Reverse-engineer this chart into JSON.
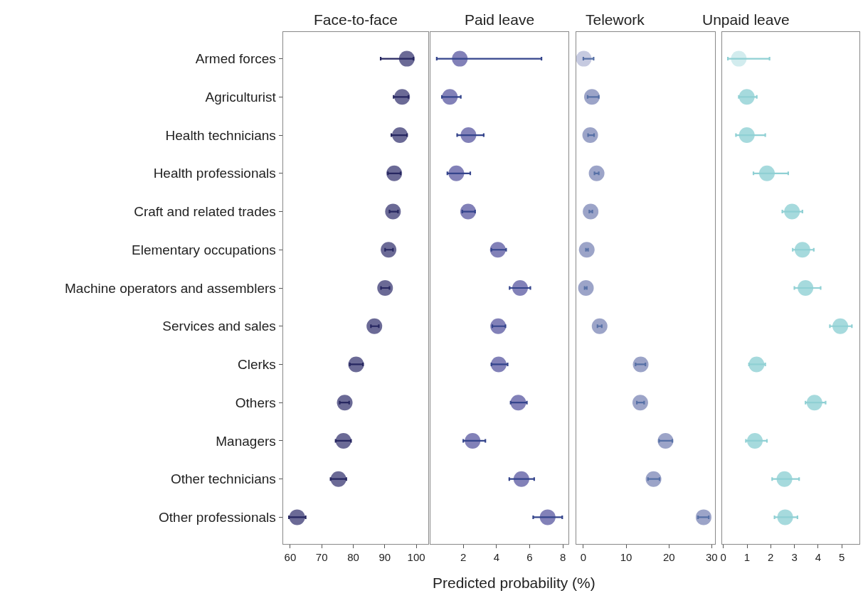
{
  "chart_data": [
    {
      "type": "scatter",
      "orientation": "horizontal",
      "title": "Face-to-face",
      "xlabel": "Predicted probability (%)",
      "marker": "circle",
      "categories": [
        "Armed forces",
        "Agriculturist",
        "Health technicians",
        "Health professionals",
        "Craft and related trades",
        "Elementary occupations",
        "Machine operators and assemblers",
        "Services and sales",
        "Clerks",
        "Others",
        "Managers",
        "Other technicians",
        "Other professionals"
      ],
      "color": "#262660",
      "colors": [
        "#6b6a96",
        "#6b6a96",
        "#6b6a96",
        "#6b6a96",
        "#6b6a96",
        "#6b6a96",
        "#6b6a96",
        "#6b6a96",
        "#6b6a96",
        "#6b6a96",
        "#6b6a96",
        "#6b6a96",
        "#6b6a96"
      ],
      "values": [
        97.0,
        95.5,
        94.8,
        93.0,
        92.6,
        91.2,
        90.1,
        86.7,
        80.9,
        77.3,
        76.9,
        75.3,
        62.2
      ],
      "errors": [
        [
          88.7,
          99.1
        ],
        [
          92.8,
          97.5
        ],
        [
          92.1,
          97.1
        ],
        [
          91.0,
          95.0
        ],
        [
          91.5,
          94.2
        ],
        [
          90.1,
          92.6
        ],
        [
          88.8,
          91.5
        ],
        [
          85.6,
          88.1
        ],
        [
          78.9,
          83.1
        ],
        [
          75.7,
          78.7
        ],
        [
          74.4,
          79.3
        ],
        [
          72.8,
          77.8
        ],
        [
          59.6,
          64.9
        ]
      ],
      "xlim": [
        57.7,
        103.7
      ],
      "xticks": [
        60,
        70,
        80,
        90,
        100
      ]
    },
    {
      "type": "scatter",
      "orientation": "horizontal",
      "title": "Paid leave",
      "marker": "circle",
      "tick_labels": "x",
      "categories": [
        "Armed forces",
        "Agriculturist",
        "Health technicians",
        "Health professionals",
        "Craft and related trades",
        "Elementary occupations",
        "Machine operators and assemblers",
        "Services and sales",
        "Clerks",
        "Others",
        "Managers",
        "Other technicians",
        "Other professionals"
      ],
      "color": "#34448c",
      "colors": [
        "#8281b8",
        "#8281b8",
        "#8281b8",
        "#8281b8",
        "#8281b8",
        "#8281b8",
        "#8281b8",
        "#8281b8",
        "#8281b8",
        "#8281b8",
        "#8281b8",
        "#8281b8",
        "#8281b8"
      ],
      "values": [
        1.79,
        1.19,
        2.31,
        1.58,
        2.29,
        4.08,
        5.42,
        4.1,
        4.13,
        5.31,
        2.56,
        5.5,
        7.08
      ],
      "errors": [
        [
          0.4,
          6.71
        ],
        [
          0.71,
          1.85
        ],
        [
          1.63,
          3.23
        ],
        [
          1.04,
          2.42
        ],
        [
          1.94,
          2.71
        ],
        [
          3.69,
          4.58
        ],
        [
          4.79,
          6.04
        ],
        [
          3.75,
          4.54
        ],
        [
          3.69,
          4.67
        ],
        [
          4.85,
          5.83
        ],
        [
          2.0,
          3.33
        ],
        [
          4.77,
          6.27
        ],
        [
          6.21,
          7.96
        ]
      ],
      "xlim": [
        0.0,
        8.35
      ],
      "xticks": [
        2,
        4,
        6,
        8
      ]
    },
    {
      "type": "scatter",
      "orientation": "horizontal",
      "title": "Telework",
      "marker": "circle",
      "tick_labels": "x",
      "categories": [
        "Armed forces",
        "Agriculturist",
        "Health technicians",
        "Health professionals",
        "Craft and related trades",
        "Elementary occupations",
        "Machine operators and assemblers",
        "Services and sales",
        "Clerks",
        "Others",
        "Managers",
        "Other technicians",
        "Other professionals"
      ],
      "color": "#5670a6",
      "colors": [
        "#c6cae0",
        "#9ca4c8",
        "#9ca4c8",
        "#9ca4c8",
        "#9ca4c8",
        "#9ca4c8",
        "#9ca4c8",
        "#9ca4c8",
        "#9ca4c8",
        "#9ca4c8",
        "#9ca4c8",
        "#9ca4c8",
        "#9ca4c8"
      ],
      "values": [
        0.1,
        2.0,
        1.6,
        3.1,
        1.7,
        0.8,
        0.6,
        3.8,
        13.4,
        13.3,
        19.2,
        16.4,
        28.1
      ],
      "errors": [
        [
          0.0,
          2.4
        ],
        [
          1.0,
          3.6
        ],
        [
          1.1,
          2.5
        ],
        [
          2.6,
          3.6
        ],
        [
          1.4,
          2.1
        ],
        [
          0.6,
          1.1
        ],
        [
          0.3,
          0.8
        ],
        [
          3.3,
          4.3
        ],
        [
          12.2,
          14.5
        ],
        [
          12.5,
          14.2
        ],
        [
          17.7,
          20.8
        ],
        [
          15.1,
          17.8
        ],
        [
          26.8,
          29.3
        ]
      ],
      "xlim": [
        -1.6,
        30.8
      ],
      "xticks": [
        0,
        10,
        20,
        30
      ]
    },
    {
      "type": "scatter",
      "orientation": "horizontal",
      "title": "Unpaid leave",
      "marker": "circle",
      "tick_labels": "x",
      "categories": [
        "Armed forces",
        "Agriculturist",
        "Health technicians",
        "Health professionals",
        "Craft and related trades",
        "Elementary occupations",
        "Machine operators and assemblers",
        "Services and sales",
        "Clerks",
        "Others",
        "Managers",
        "Other technicians",
        "Other professionals"
      ],
      "color": "#8fd0d4",
      "colors": [
        "#d2ecee",
        "#a6dadd",
        "#a6dadd",
        "#a6dadd",
        "#a6dadd",
        "#a6dadd",
        "#a6dadd",
        "#a6dadd",
        "#a6dadd",
        "#a6dadd",
        "#a6dadd",
        "#a6dadd",
        "#a6dadd"
      ],
      "values": [
        0.65,
        0.99,
        0.99,
        1.84,
        2.9,
        3.34,
        3.47,
        4.94,
        1.4,
        3.85,
        1.33,
        2.58,
        2.61
      ],
      "errors": [
        [
          0.19,
          1.95
        ],
        [
          0.65,
          1.41
        ],
        [
          0.53,
          1.77
        ],
        [
          1.27,
          2.74
        ],
        [
          2.49,
          3.34
        ],
        [
          2.93,
          3.82
        ],
        [
          3.0,
          4.11
        ],
        [
          4.5,
          5.43
        ],
        [
          1.08,
          1.77
        ],
        [
          3.47,
          4.32
        ],
        [
          0.95,
          1.84
        ],
        [
          2.06,
          3.2
        ],
        [
          2.16,
          3.13
        ]
      ],
      "xlim": [
        -0.05,
        5.75
      ],
      "xticks": [
        0,
        1,
        2,
        3,
        4,
        5
      ]
    }
  ]
}
